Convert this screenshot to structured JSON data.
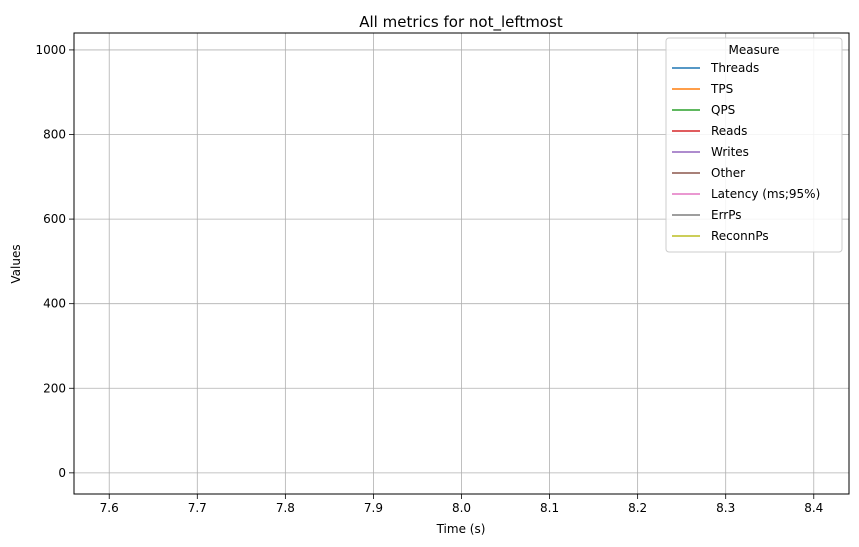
{
  "chart_data": {
    "type": "line",
    "title": "All metrics for not_leftmost",
    "xlabel": "Time (s)",
    "ylabel": "Values",
    "xlim": [
      7.56,
      8.44
    ],
    "ylim": [
      -50,
      1040
    ],
    "xticks": [
      "7.6",
      "7.7",
      "7.8",
      "7.9",
      "8.0",
      "8.1",
      "8.2",
      "8.3",
      "8.4"
    ],
    "yticks": [
      "0",
      "200",
      "400",
      "600",
      "800",
      "1000"
    ],
    "grid": true,
    "legend": {
      "title": "Measure",
      "position": "upper-right"
    },
    "series": [
      {
        "name": "Threads",
        "color": "#1f77b4",
        "points": []
      },
      {
        "name": "TPS",
        "color": "#ff7f0e",
        "points": []
      },
      {
        "name": "QPS",
        "color": "#2ca02c",
        "points": []
      },
      {
        "name": "Reads",
        "color": "#d62728",
        "points": []
      },
      {
        "name": "Writes",
        "color": "#9467bd",
        "points": []
      },
      {
        "name": "Other",
        "color": "#8c564b",
        "points": []
      },
      {
        "name": "Latency (ms;95%)",
        "color": "#e377c2",
        "points": []
      },
      {
        "name": "ErrPs",
        "color": "#7f7f7f",
        "points": []
      },
      {
        "name": "ReconnPs",
        "color": "#bcbd22",
        "points": []
      }
    ]
  }
}
